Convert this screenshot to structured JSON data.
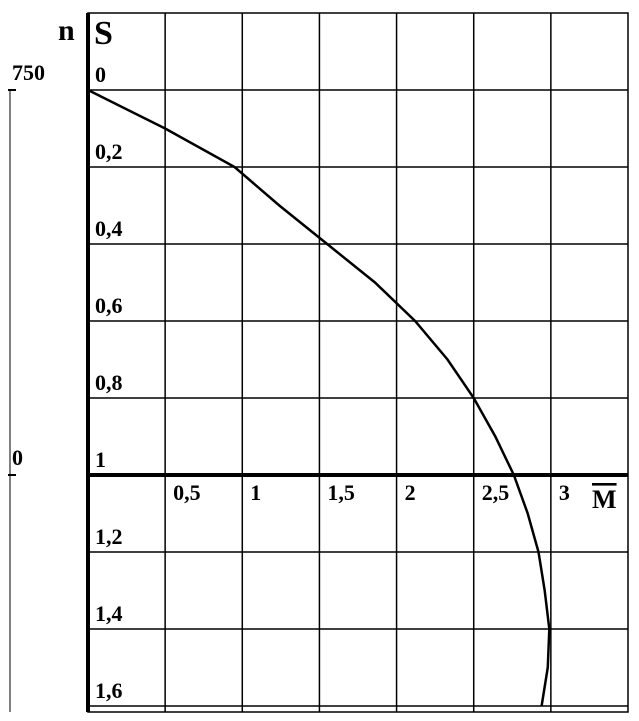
{
  "chart_data": {
    "type": "line",
    "y_label": "S",
    "y2_label": "n",
    "x_label": "M",
    "xlim": [
      0,
      3.5
    ],
    "xticks": [
      {
        "value": 0.5,
        "label": "0,5"
      },
      1,
      {
        "value": 1.5,
        "label": "1,5"
      },
      2,
      {
        "value": 2.5,
        "label": "2,5"
      },
      3
    ],
    "ylim": [
      1.6,
      -0.2
    ],
    "yticks": [
      0,
      {
        "value": 0.2,
        "label": "0,2"
      },
      {
        "value": 0.4,
        "label": "0,4"
      },
      {
        "value": 0.6,
        "label": "0,6"
      },
      {
        "value": 0.8,
        "label": "0,8"
      },
      1,
      {
        "value": 1.2,
        "label": "1,2"
      },
      {
        "value": 1.4,
        "label": "1,4"
      },
      {
        "value": 1.6,
        "label": "1,6"
      }
    ],
    "y2lim": [
      -450,
      900
    ],
    "y2ticks": [
      750,
      0
    ],
    "grid": true,
    "series": [
      {
        "color": "#000000",
        "x": [
          0,
          0.5,
          0.95,
          1.24,
          1.55,
          1.86,
          2.12,
          2.33,
          2.5,
          2.64,
          2.76,
          2.85,
          2.92,
          2.96,
          2.99,
          2.98,
          2.94
        ],
        "values": [
          0,
          0.1,
          0.2,
          0.3,
          0.4,
          0.5,
          0.6,
          0.7,
          0.8,
          0.9,
          1,
          1.1,
          1.2,
          1.3,
          1.4,
          1.5,
          1.6
        ]
      }
    ]
  }
}
